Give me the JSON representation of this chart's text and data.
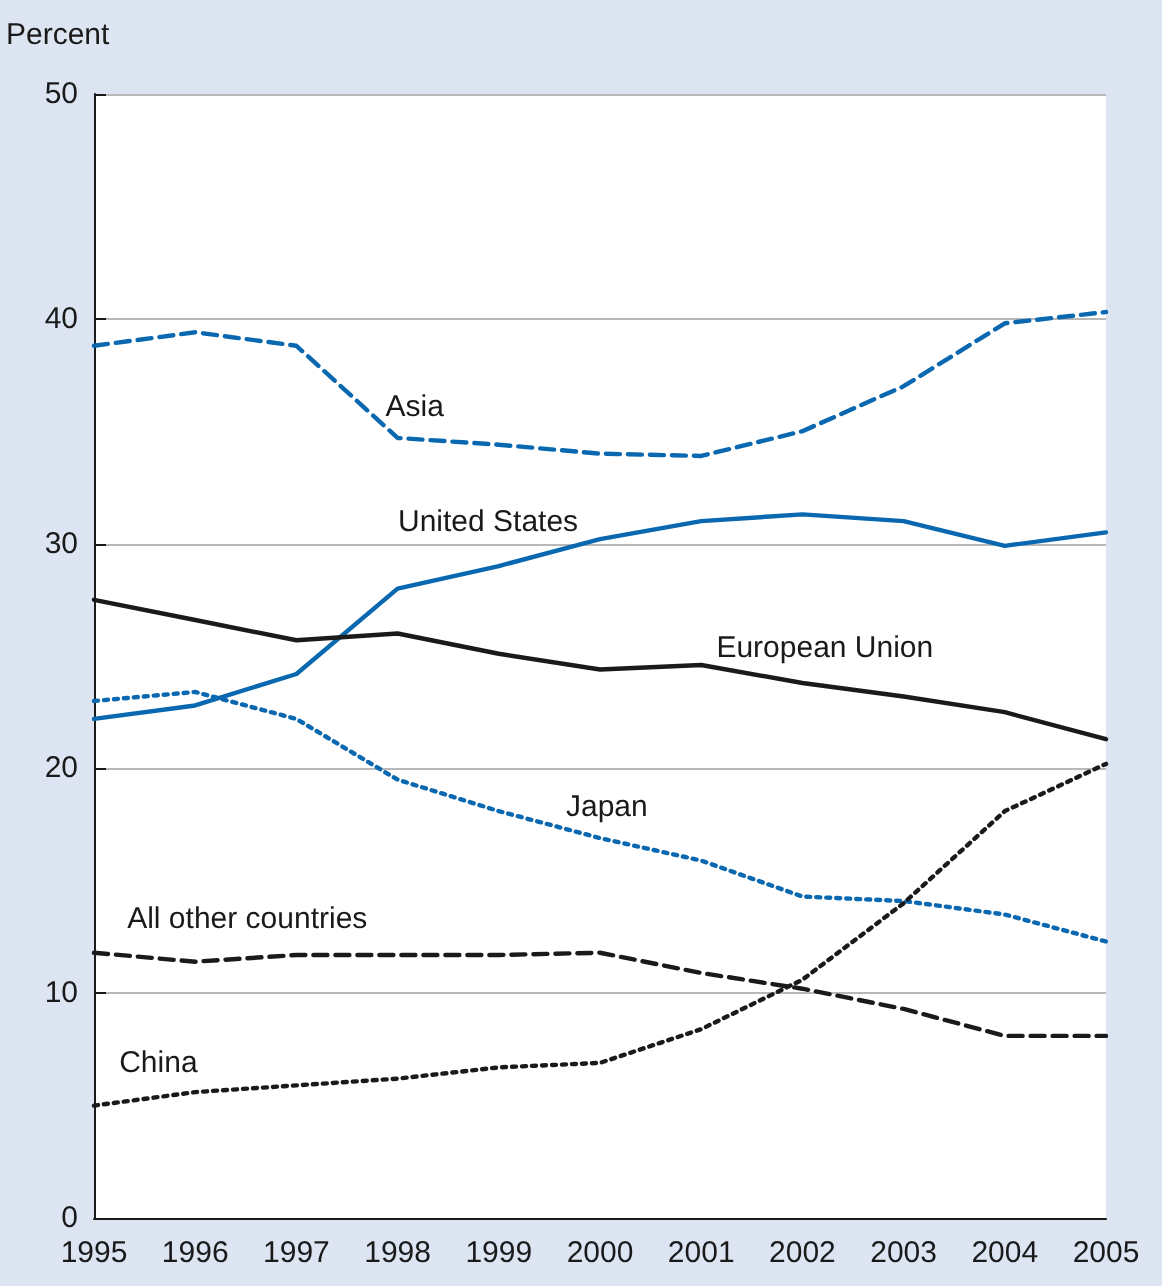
{
  "chart_data": {
    "type": "line",
    "ylabel": "Percent",
    "categories": [
      "1995",
      "1996",
      "1997",
      "1998",
      "1999",
      "2000",
      "2001",
      "2002",
      "2003",
      "2004",
      "2005"
    ],
    "series": [
      {
        "name": "Asia",
        "color": "#0a68b0",
        "line_style": "dashed",
        "values": [
          38.8,
          39.4,
          38.8,
          34.7,
          34.4,
          34.0,
          33.9,
          35.0,
          37.0,
          39.8,
          40.3
        ]
      },
      {
        "name": "United States",
        "color": "#0a68b0",
        "line_style": "solid",
        "values": [
          22.2,
          22.8,
          24.2,
          28.0,
          29.0,
          30.2,
          31.0,
          31.3,
          31.0,
          29.9,
          30.5
        ]
      },
      {
        "name": "European Union",
        "color": "#1a1a1a",
        "line_style": "solid",
        "values": [
          27.5,
          26.6,
          25.7,
          26.0,
          25.1,
          24.4,
          24.6,
          23.8,
          23.2,
          22.5,
          21.3
        ]
      },
      {
        "name": "Japan",
        "color": "#0a68b0",
        "line_style": "dotted",
        "values": [
          23.0,
          23.4,
          22.2,
          19.5,
          18.1,
          16.9,
          15.9,
          14.3,
          14.1,
          13.5,
          12.3
        ]
      },
      {
        "name": "All other countries",
        "color": "#1a1a1a",
        "line_style": "dashed",
        "values": [
          11.8,
          11.4,
          11.7,
          11.7,
          11.7,
          11.8,
          10.9,
          10.2,
          9.3,
          8.1,
          8.1
        ]
      },
      {
        "name": "China",
        "color": "#1a1a1a",
        "line_style": "dotted",
        "values": [
          5.0,
          5.6,
          5.9,
          6.2,
          6.7,
          6.9,
          8.4,
          10.6,
          14.0,
          18.1,
          20.2
        ]
      }
    ],
    "ylim": [
      0,
      50
    ],
    "yticks": [
      0,
      10,
      20,
      30,
      40,
      50
    ],
    "grid": "y",
    "legend": false,
    "marker": "none"
  }
}
